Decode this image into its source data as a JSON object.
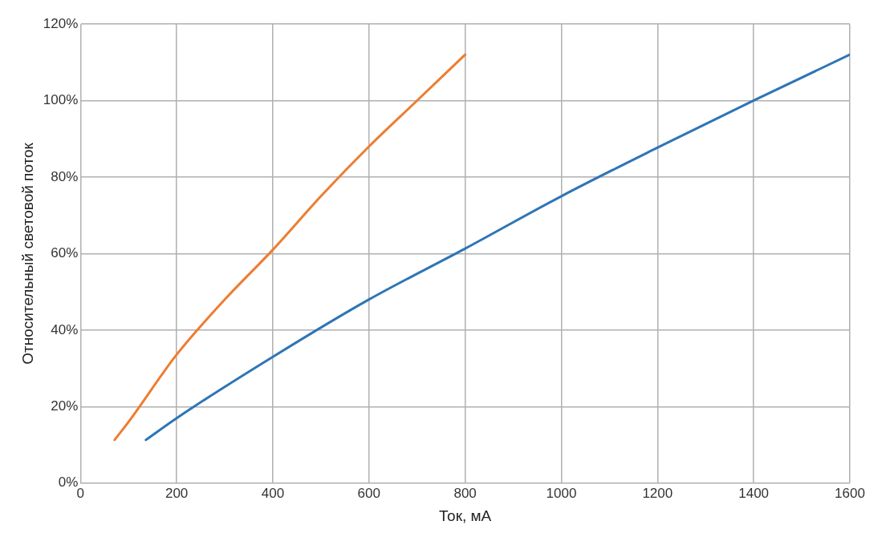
{
  "chart_data": {
    "type": "line",
    "xlabel": "Ток, мА",
    "ylabel": "Относительный световой поток",
    "xlim": [
      0,
      1600
    ],
    "xticks": [
      0,
      200,
      400,
      600,
      800,
      1000,
      1200,
      1400,
      1600
    ],
    "ylim": [
      0,
      120
    ],
    "yticks": [
      {
        "value": 0,
        "label": "0%"
      },
      {
        "value": 20,
        "label": "20%"
      },
      {
        "value": 40,
        "label": "40%"
      },
      {
        "value": 60,
        "label": "60%"
      },
      {
        "value": 80,
        "label": "80%"
      },
      {
        "value": 100,
        "label": "100%"
      },
      {
        "value": 120,
        "label": "120%"
      }
    ],
    "grid": true,
    "marker": "none",
    "line_style": "solid",
    "series": [
      {
        "color": "#2e75b6",
        "x": [
          136,
          200,
          400,
          600,
          800,
          1000,
          1200,
          1400,
          1600
        ],
        "values": [
          11.3,
          17,
          33,
          48,
          61.3,
          75,
          87.7,
          100,
          112
        ]
      },
      {
        "color": "#ed7d31",
        "x": [
          71,
          100,
          200,
          300,
          400,
          500,
          600,
          700,
          800
        ],
        "values": [
          11.3,
          16,
          33.6,
          48,
          61,
          75,
          88,
          100,
          112
        ]
      }
    ]
  }
}
